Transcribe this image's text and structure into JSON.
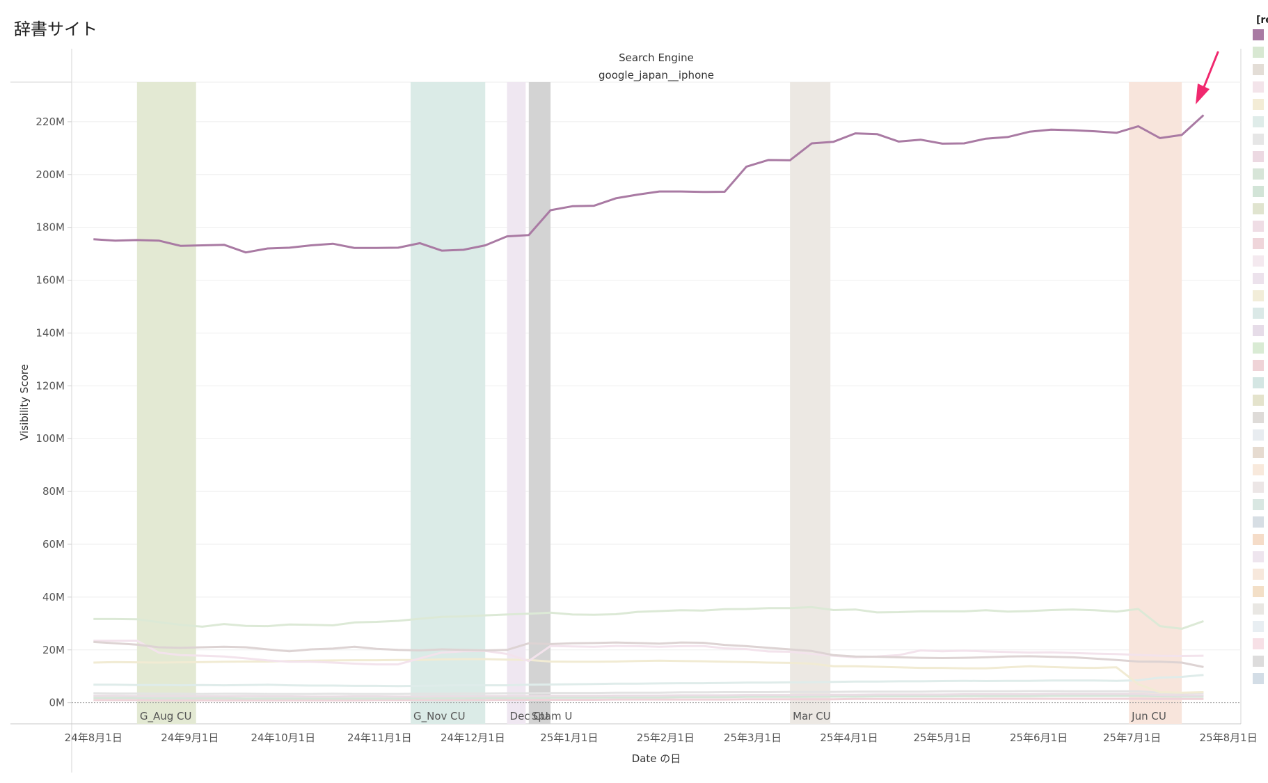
{
  "page": {
    "title": "辞書サイト"
  },
  "chart_data": {
    "type": "line",
    "header_title": "Search Engine",
    "header_subtitle": "google_japan__iphone",
    "xlabel": "Date の日",
    "ylabel": "Visibility Score",
    "x_start": "2024-07-25",
    "x_end": "2025-08-05",
    "ylim": [
      -8,
      235
    ],
    "y_ticks": [
      {
        "v": 0,
        "label": "0M"
      },
      {
        "v": 20,
        "label": "20M"
      },
      {
        "v": 40,
        "label": "40M"
      },
      {
        "v": 60,
        "label": "60M"
      },
      {
        "v": 80,
        "label": "80M"
      },
      {
        "v": 100,
        "label": "100M"
      },
      {
        "v": 120,
        "label": "120M"
      },
      {
        "v": 140,
        "label": "140M"
      },
      {
        "v": 160,
        "label": "160M"
      },
      {
        "v": 180,
        "label": "180M"
      },
      {
        "v": 200,
        "label": "200M"
      },
      {
        "v": 220,
        "label": "220M"
      }
    ],
    "x_ticks": [
      {
        "d": "2024-08-01",
        "label": "24年8月1日"
      },
      {
        "d": "2024-09-01",
        "label": "24年9月1日"
      },
      {
        "d": "2024-10-01",
        "label": "24年10月1日"
      },
      {
        "d": "2024-11-01",
        "label": "24年11月1日"
      },
      {
        "d": "2024-12-01",
        "label": "24年12月1日"
      },
      {
        "d": "2025-01-01",
        "label": "25年1月1日"
      },
      {
        "d": "2025-02-01",
        "label": "25年2月1日"
      },
      {
        "d": "2025-03-01",
        "label": "25年3月1日"
      },
      {
        "d": "2025-04-01",
        "label": "25年4月1日"
      },
      {
        "d": "2025-05-01",
        "label": "25年5月1日"
      },
      {
        "d": "2025-06-01",
        "label": "25年6月1日"
      },
      {
        "d": "2025-07-01",
        "label": "25年7月1日"
      },
      {
        "d": "2025-08-01",
        "label": "25年8月1日"
      }
    ],
    "grid": true,
    "annotation_bands": [
      {
        "label": "G_Aug CU",
        "start": "2024-08-15",
        "end": "2024-09-03",
        "color": "#e3e9d3"
      },
      {
        "label": "G_Nov CU",
        "start": "2024-11-11",
        "end": "2024-12-05",
        "color": "#dbebe7"
      },
      {
        "label": "Dec CU",
        "start": "2024-12-12",
        "end": "2024-12-18",
        "color": "#efe7f1"
      },
      {
        "label": "Spam U",
        "start": "2024-12-19",
        "end": "2024-12-26",
        "color": "#d3d3d3"
      },
      {
        "label": "Mar CU",
        "start": "2025-03-13",
        "end": "2025-03-26",
        "color": "#ece8e3"
      },
      {
        "label": "Jun CU",
        "start": "2025-06-30",
        "end": "2025-07-17",
        "color": "#f8e5dc"
      }
    ],
    "arrow_color": "#f0286e",
    "legend_title": "[re",
    "legend_colors": [
      "#a97aa3",
      "#d8e8d2",
      "#e3ddd6",
      "#f3e4ea",
      "#f3ecd6",
      "#dfece9",
      "#e6e6e6",
      "#ecd9e2",
      "#d7e5d8",
      "#d2e4d7",
      "#e0e4cf",
      "#efdde5",
      "#efd5da",
      "#f4e9ef",
      "#ece2ec",
      "#f2edd9",
      "#dbe9e7",
      "#e6dce8",
      "#d9ebd4",
      "#efd3d7",
      "#d4e6e3",
      "#e4e3cc",
      "#dedbd8",
      "#e8ecf0",
      "#e6dbd0",
      "#f8e9dc",
      "#ece6e6",
      "#d9e7e2",
      "#d7dee4",
      "#f5dcc8",
      "#eee5ee",
      "#f7e8dc",
      "#f3dfc7",
      "#e9e7e3",
      "#e8eef2",
      "#f7e0e6",
      "#dddcdc",
      "#d3dde6"
    ],
    "series": [
      {
        "color": "#a97aa3",
        "width": 3,
        "x_start": "2024-08-01",
        "step_days": 7,
        "values": [
          175.5,
          175,
          175.2,
          175,
          173,
          173.2,
          173.4,
          170.5,
          172,
          172.3,
          173.2,
          173.8,
          172.2,
          172.2,
          172.3,
          174,
          171.2,
          171.5,
          173.2,
          176.6,
          177.1,
          186.5,
          188,
          188.2,
          191,
          192.4,
          193.6,
          193.6,
          193.4,
          193.5,
          203,
          205.5,
          205.4,
          211.8,
          212.4,
          215.6,
          215.3,
          212.5,
          213.2,
          211.7,
          211.8,
          213.6,
          214.2,
          216.2,
          217,
          216.8,
          216.4,
          215.8,
          218.3,
          213.8,
          215,
          222.5
        ]
      },
      {
        "color": "#dce9d6",
        "width": 3,
        "x_start": "2024-08-01",
        "step_days": 7,
        "values": [
          31.7,
          31.7,
          31.6,
          30.5,
          29.5,
          28.8,
          29.8,
          29.1,
          29,
          29.6,
          29.5,
          29.3,
          30.4,
          30.6,
          31,
          31.8,
          32.5,
          32.7,
          33.1,
          33.4,
          33.7,
          34.1,
          33.4,
          33.3,
          33.5,
          34.4,
          34.7,
          35,
          34.9,
          35.4,
          35.5,
          35.8,
          35.8,
          36.2,
          35.1,
          35.3,
          34.2,
          34.3,
          34.6,
          34.6,
          34.6,
          35,
          34.5,
          34.7,
          35.1,
          35.3,
          35,
          34.5,
          35.5,
          29,
          28,
          30.9
        ]
      },
      {
        "color": "#ddd3d3",
        "width": 3,
        "x_start": "2024-08-01",
        "step_days": 7,
        "values": [
          23,
          22.5,
          22,
          21,
          20.8,
          21,
          21.2,
          21,
          20.2,
          19.5,
          20.2,
          20.5,
          21.2,
          20.4,
          20,
          19.8,
          20.2,
          20,
          19.8,
          20,
          22.5,
          22.2,
          22.5,
          22.6,
          22.8,
          22.6,
          22.4,
          22.8,
          22.7,
          21.9,
          21.4,
          20.8,
          20.2,
          19.6,
          18,
          17.5,
          17.4,
          17.2,
          17,
          16.9,
          17,
          17.2,
          17.5,
          17.6,
          17.4,
          17.2,
          16.7,
          16.2,
          15.6,
          15.5,
          15.2,
          13.5
        ]
      },
      {
        "color": "#f3e3ec",
        "width": 3,
        "x_start": "2024-08-01",
        "step_days": 7,
        "values": [
          23.5,
          23.5,
          23.5,
          19,
          18,
          17.8,
          17.5,
          16.8,
          16,
          15.5,
          15.5,
          15.2,
          14.8,
          14.5,
          14.5,
          16.8,
          19,
          19.5,
          19.6,
          18.5,
          15.8,
          21.5,
          21.3,
          21.2,
          21.5,
          21.4,
          21.2,
          21.4,
          21.5,
          20.6,
          20.3,
          19.4,
          19.3,
          18.5,
          17.8,
          17.2,
          17.5,
          18,
          19.8,
          19.5,
          19.7,
          19.4,
          19.2,
          19,
          19.1,
          18.8,
          18.6,
          18.4,
          18.1,
          17.8,
          17.7,
          17.8
        ]
      },
      {
        "color": "#f1ebd3",
        "width": 3,
        "x_start": "2024-08-01",
        "step_days": 7,
        "values": [
          15.2,
          15.4,
          15.3,
          15.2,
          15.3,
          15.4,
          15.5,
          15.6,
          15.6,
          15.8,
          15.9,
          16,
          16.1,
          16.1,
          16.2,
          16.2,
          16.4,
          16.5,
          16.5,
          16.3,
          16.2,
          15.6,
          15.5,
          15.5,
          15.6,
          15.8,
          15.9,
          15.8,
          15.7,
          15.5,
          15.4,
          15.2,
          15.1,
          14.8,
          13.8,
          13.8,
          13.6,
          13.4,
          13.2,
          13.2,
          13,
          13,
          13.4,
          13.8,
          13.5,
          13.3,
          13.2,
          13.4,
          7,
          4,
          3.8,
          4
        ]
      },
      {
        "color": "#dfecea",
        "width": 3,
        "x_start": "2024-08-01",
        "step_days": 7,
        "values": [
          6.8,
          6.8,
          6.7,
          6.7,
          6.6,
          6.7,
          6.6,
          6.7,
          6.8,
          6.6,
          6.5,
          6.5,
          6.4,
          6.4,
          6.3,
          6.4,
          6.5,
          6.6,
          6.6,
          6.6,
          6.8,
          6.9,
          7,
          7.1,
          7.2,
          7.2,
          7.3,
          7.4,
          7.4,
          7.5,
          7.6,
          7.6,
          7.7,
          7.8,
          7.9,
          8,
          8,
          8.1,
          8.1,
          8.2,
          8.3,
          8.2,
          8.3,
          8.3,
          8.4,
          8.4,
          8.4,
          8.3,
          8.5,
          9.5,
          9.8,
          10.5
        ]
      },
      {
        "color": "#e3e3e3",
        "width": 3,
        "x_start": "2024-08-01",
        "step_days": 7,
        "values": [
          3.6,
          3.5,
          3.5,
          3.4,
          3.4,
          3.3,
          3.4,
          3.4,
          3.3,
          3.3,
          3.3,
          3.4,
          3.3,
          3.3,
          3.3,
          3.4,
          3.4,
          3.5,
          3.5,
          3.6,
          3.6,
          3.7,
          3.7,
          3.7,
          3.8,
          3.8,
          3.8,
          3.9,
          3.9,
          4,
          4,
          4,
          4.1,
          4.1,
          4.1,
          4.2,
          4.2,
          4.2,
          4.2,
          4.3,
          4.3,
          4.3,
          4.3,
          4.4,
          4.4,
          4.3,
          4.3,
          4.3,
          4.3,
          3.8,
          3.6,
          3.7
        ]
      },
      {
        "color": "#e9dde4",
        "width": 3,
        "x_start": "2024-08-01",
        "step_days": 7,
        "values": [
          2.6,
          2.6,
          2.5,
          2.5,
          2.5,
          2.4,
          2.4,
          2.5,
          2.4,
          2.4,
          2.3,
          2.3,
          2.4,
          2.4,
          2.3,
          2.3,
          2.4,
          2.4,
          2.5,
          2.5,
          2.5,
          2.6,
          2.6,
          2.6,
          2.7,
          2.7,
          2.7,
          2.8,
          2.8,
          2.8,
          2.9,
          2.9,
          2.9,
          3,
          3,
          3,
          3.1,
          3.1,
          3.1,
          3.1,
          3.2,
          3.2,
          3.2,
          3.2,
          3.3,
          3.3,
          3.3,
          3.3,
          3.3,
          2.9,
          2.8,
          2.8
        ]
      },
      {
        "color": "#d5e6d9",
        "width": 3,
        "x_start": "2024-08-01",
        "step_days": 7,
        "values": [
          1.8,
          1.8,
          1.8,
          1.7,
          1.7,
          1.7,
          1.7,
          1.6,
          1.6,
          1.6,
          1.6,
          1.6,
          1.6,
          1.6,
          1.6,
          1.7,
          1.7,
          1.7,
          1.8,
          1.8,
          1.8,
          1.9,
          1.9,
          1.9,
          2,
          2,
          2,
          2.1,
          2.1,
          2.1,
          2.2,
          2.2,
          2.2,
          2.3,
          2.3,
          2.3,
          2.4,
          2.4,
          2.4,
          2.4,
          2.5,
          2.5,
          2.5,
          2.5,
          2.6,
          2.6,
          2.6,
          2.6,
          2.6,
          2.4,
          2.3,
          2.3
        ]
      },
      {
        "color": "#efd3d9",
        "width": 3,
        "x_start": "2024-08-01",
        "step_days": 7,
        "values": [
          1,
          1,
          1,
          0.9,
          0.9,
          0.9,
          0.9,
          0.9,
          0.9,
          0.9,
          0.9,
          0.9,
          0.9,
          1,
          1,
          1,
          1,
          1,
          1,
          1.1,
          1.1,
          1.1,
          1.1,
          1.1,
          1.2,
          1.2,
          1.2,
          1.2,
          1.2,
          1.2,
          1.3,
          1.3,
          1.3,
          1.3,
          1.3,
          1.4,
          1.4,
          1.4,
          1.4,
          1.4,
          1.4,
          1.5,
          1.5,
          1.5,
          1.5,
          1.5,
          1.5,
          1.5,
          1.5,
          1.4,
          1.4,
          1.4
        ]
      }
    ]
  }
}
